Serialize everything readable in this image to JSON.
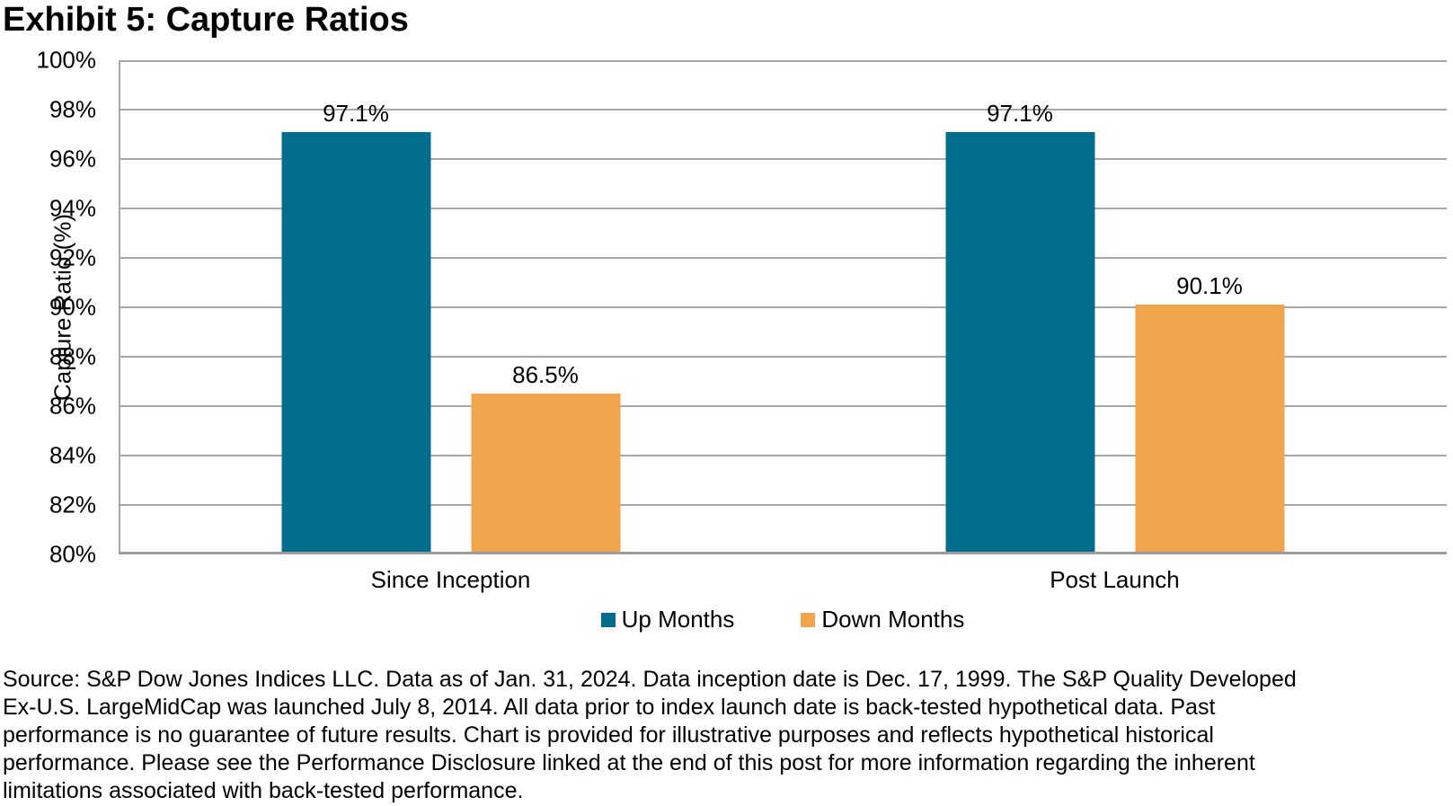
{
  "title": "Exhibit 5: Capture Ratios",
  "chart_data": {
    "type": "bar",
    "title": "Exhibit 5: Capture Ratios",
    "categories": [
      "Since Inception",
      "Post Launch"
    ],
    "series": [
      {
        "name": "Up Months",
        "color": "#006e8c",
        "values": [
          97.1,
          97.1
        ],
        "labels": [
          "97.1%",
          "97.1%"
        ]
      },
      {
        "name": "Down Months",
        "color": "#f0a44c",
        "values": [
          86.5,
          90.1
        ],
        "labels": [
          "86.5%",
          "90.1%"
        ]
      }
    ],
    "ylabel": "Capture Ratio (%)",
    "xlabel": "",
    "ylim": [
      80,
      100
    ],
    "ytick_step": 2,
    "ytick_labels": [
      "80%",
      "82%",
      "84%",
      "86%",
      "88%",
      "90%",
      "92%",
      "94%",
      "96%",
      "98%",
      "100%"
    ],
    "grid": true,
    "legend_position": "bottom"
  },
  "source_note_lines": [
    "Source: S&P Dow Jones Indices LLC. Data as of Jan. 31, 2024. Data inception date is Dec. 17, 1999. The S&P Quality Developed",
    "Ex-U.S. LargeMidCap was launched July 8, 2014. All data prior to index launch date is back-tested hypothetical data. Past",
    "performance is no guarantee of future results. Chart is provided for illustrative purposes and reflects hypothetical historical",
    "performance. Please see the Performance Disclosure linked at the end of this post for more information regarding the inherent",
    "limitations associated with back-tested performance."
  ]
}
